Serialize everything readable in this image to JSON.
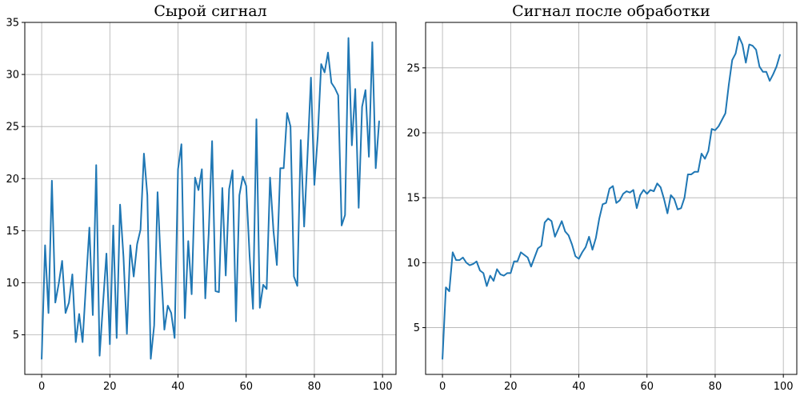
{
  "colors": {
    "series": "#1f77b4"
  },
  "chart_data": [
    {
      "type": "line",
      "title": "Сырой сигнал",
      "xlabel": "",
      "ylabel": "",
      "xlim": [
        -4.95,
        103.95
      ],
      "ylim": [
        1.2,
        35.0
      ],
      "xticks": [
        0,
        20,
        40,
        60,
        80,
        100
      ],
      "yticks": [
        5,
        10,
        15,
        20,
        25,
        30,
        35
      ],
      "grid": true,
      "legend": "none",
      "x": [
        0,
        1,
        2,
        3,
        4,
        5,
        6,
        7,
        8,
        9,
        10,
        11,
        12,
        13,
        14,
        15,
        16,
        17,
        18,
        19,
        20,
        21,
        22,
        23,
        24,
        25,
        26,
        27,
        28,
        29,
        30,
        31,
        32,
        33,
        34,
        35,
        36,
        37,
        38,
        39,
        40,
        41,
        42,
        43,
        44,
        45,
        46,
        47,
        48,
        49,
        50,
        51,
        52,
        53,
        54,
        55,
        56,
        57,
        58,
        59,
        60,
        61,
        62,
        63,
        64,
        65,
        66,
        67,
        68,
        69,
        70,
        71,
        72,
        73,
        74,
        75,
        76,
        77,
        78,
        79,
        80,
        81,
        82,
        83,
        84,
        85,
        86,
        87,
        88,
        89,
        90,
        91,
        92,
        93,
        94,
        95,
        96,
        97,
        98,
        99
      ],
      "series": [
        {
          "values": [
            2.7,
            13.6,
            7.1,
            19.8,
            8.1,
            9.9,
            12.1,
            7.1,
            8.1,
            10.8,
            4.3,
            7.0,
            4.3,
            9.9,
            15.3,
            6.9,
            21.3,
            3.0,
            8.0,
            12.8,
            4.1,
            15.5,
            4.7,
            17.5,
            12.5,
            5.1,
            13.6,
            10.6,
            13.7,
            15.1,
            22.4,
            18.4,
            2.7,
            5.9,
            18.7,
            11.5,
            5.5,
            7.8,
            7.1,
            4.7,
            20.9,
            23.3,
            6.6,
            14.0,
            8.9,
            20.1,
            18.9,
            20.9,
            8.5,
            14.7,
            23.6,
            9.2,
            9.1,
            19.1,
            10.7,
            19.0,
            20.8,
            6.3,
            18.4,
            20.2,
            19.3,
            12.6,
            7.5,
            25.7,
            7.6,
            9.8,
            9.4,
            20.1,
            15.0,
            11.7,
            21.0,
            21.0,
            26.3,
            25.0,
            10.6,
            9.7,
            23.7,
            15.4,
            22.3,
            29.7,
            19.4,
            24.1,
            31.0,
            30.2,
            32.1,
            29.2,
            28.7,
            28.0,
            15.5,
            16.5,
            33.5,
            23.2,
            28.6,
            17.2,
            26.9,
            28.5,
            22.1,
            33.1,
            21.0,
            25.5
          ]
        }
      ]
    },
    {
      "type": "line",
      "title": "Сигнал после обработки",
      "xlabel": "",
      "ylabel": "",
      "xlim": [
        -4.95,
        103.95
      ],
      "ylim": [
        1.4,
        28.5
      ],
      "xticks": [
        0,
        20,
        40,
        60,
        80,
        100
      ],
      "yticks": [
        5,
        10,
        15,
        20,
        25
      ],
      "grid": true,
      "legend": "none",
      "x": [
        0,
        1,
        2,
        3,
        4,
        5,
        6,
        7,
        8,
        9,
        10,
        11,
        12,
        13,
        14,
        15,
        16,
        17,
        18,
        19,
        20,
        21,
        22,
        23,
        24,
        25,
        26,
        27,
        28,
        29,
        30,
        31,
        32,
        33,
        34,
        35,
        36,
        37,
        38,
        39,
        40,
        41,
        42,
        43,
        44,
        45,
        46,
        47,
        48,
        49,
        50,
        51,
        52,
        53,
        54,
        55,
        56,
        57,
        58,
        59,
        60,
        61,
        62,
        63,
        64,
        65,
        66,
        67,
        68,
        69,
        70,
        71,
        72,
        73,
        74,
        75,
        76,
        77,
        78,
        79,
        80,
        81,
        82,
        83,
        84,
        85,
        86,
        87,
        88,
        89,
        90,
        91,
        92,
        93,
        94,
        95,
        96,
        97,
        98,
        99
      ],
      "series": [
        {
          "values": [
            2.6,
            8.1,
            7.8,
            10.8,
            10.2,
            10.2,
            10.4,
            10.0,
            9.8,
            9.9,
            10.1,
            9.4,
            9.2,
            8.2,
            9.0,
            8.6,
            9.5,
            9.1,
            9.0,
            9.2,
            9.2,
            10.1,
            10.1,
            10.8,
            10.6,
            10.4,
            9.7,
            10.4,
            11.1,
            11.3,
            13.1,
            13.4,
            13.2,
            12.0,
            12.6,
            13.2,
            12.4,
            12.1,
            11.4,
            10.5,
            10.3,
            10.8,
            11.2,
            12.0,
            11.0,
            11.9,
            13.4,
            14.5,
            14.6,
            15.7,
            15.9,
            14.6,
            14.8,
            15.3,
            15.5,
            15.4,
            15.6,
            14.2,
            15.2,
            15.6,
            15.3,
            15.6,
            15.5,
            16.1,
            15.8,
            14.9,
            13.8,
            15.2,
            14.9,
            14.1,
            14.2,
            15.0,
            16.8,
            16.8,
            17.0,
            17.0,
            18.4,
            18.0,
            18.6,
            20.3,
            20.2,
            20.5,
            21.0,
            21.5,
            23.7,
            25.6,
            26.1,
            27.4,
            26.8,
            25.4,
            26.8,
            26.7,
            26.4,
            25.1,
            24.7,
            24.7,
            24.0,
            24.5,
            25.1,
            26.0
          ]
        }
      ]
    }
  ]
}
